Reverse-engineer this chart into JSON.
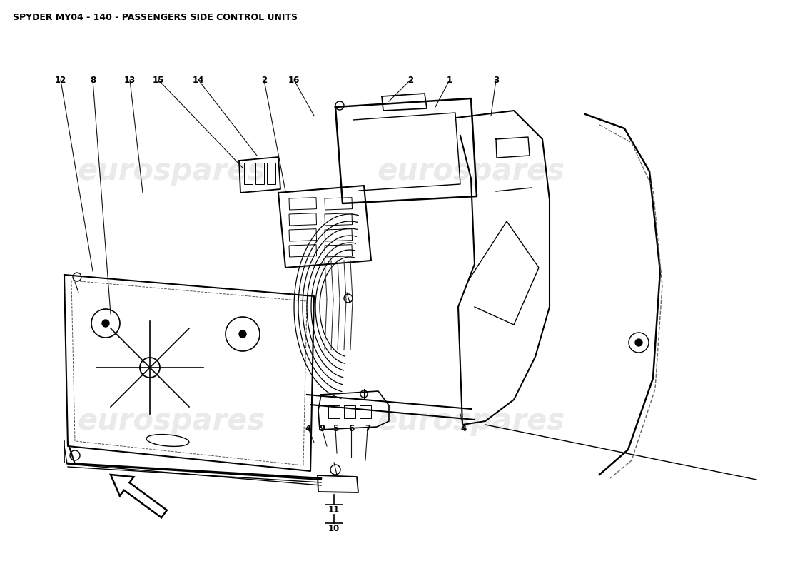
{
  "title": "SPYDER MY04 - 140 - PASSENGERS SIDE CONTROL UNITS",
  "title_fontsize": 9,
  "background_color": "#ffffff",
  "line_color": "#000000",
  "watermark_color": "#cccccc",
  "watermark_text": "eurospares",
  "figsize": [
    11.0,
    8.0
  ],
  "dpi": 100
}
